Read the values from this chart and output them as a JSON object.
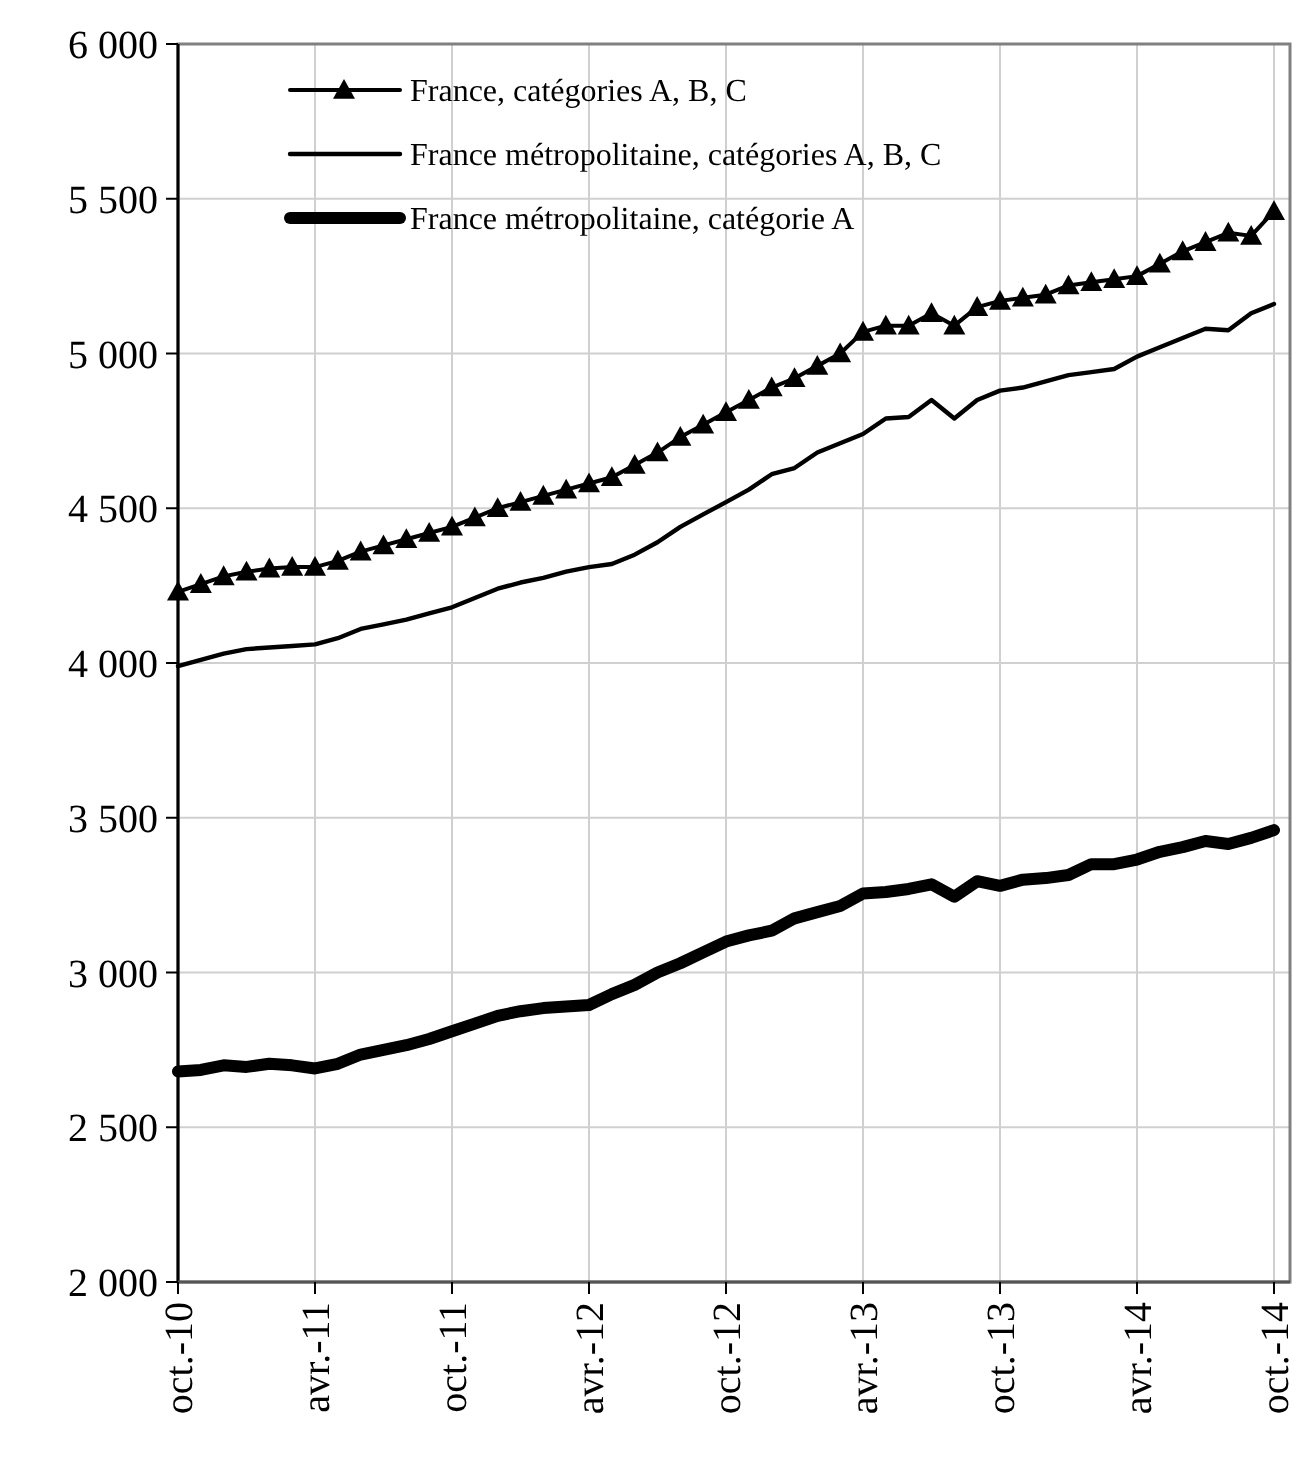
{
  "chart_data": {
    "type": "line",
    "categories": [
      "oct.-10",
      null,
      null,
      null,
      null,
      null,
      "avr.-11",
      null,
      null,
      null,
      null,
      null,
      "oct.-11",
      null,
      null,
      null,
      null,
      null,
      "avr.-12",
      null,
      null,
      null,
      null,
      null,
      "oct.-12",
      null,
      null,
      null,
      null,
      null,
      "avr.-13",
      null,
      null,
      null,
      null,
      null,
      "oct.-13",
      null,
      null,
      null,
      null,
      null,
      "avr.-14",
      null,
      null,
      null,
      null,
      null,
      "oct.-14"
    ],
    "series": [
      {
        "name": "France, catégories A, B, C",
        "color": "#000000",
        "marker": "triangle",
        "values": [
          4230,
          4255,
          4280,
          4295,
          4305,
          4310,
          4310,
          4330,
          4360,
          4380,
          4400,
          4420,
          4440,
          4470,
          4500,
          4520,
          4540,
          4560,
          4580,
          4600,
          4640,
          4680,
          4730,
          4770,
          4810,
          4850,
          4890,
          4920,
          4960,
          5000,
          5070,
          5090,
          5090,
          5130,
          5090,
          5150,
          5170,
          5180,
          5190,
          5220,
          5230,
          5240,
          5250,
          5290,
          5330,
          5360,
          5390,
          5380,
          5460
        ]
      },
      {
        "name": "France métropolitaine, catégories A, B, C",
        "color": "#000000",
        "marker": "none",
        "values": [
          3990,
          4010,
          4030,
          4045,
          4050,
          4055,
          4060,
          4080,
          4110,
          4125,
          4140,
          4160,
          4180,
          4210,
          4240,
          4260,
          4275,
          4295,
          4310,
          4320,
          4350,
          4390,
          4440,
          4480,
          4520,
          4560,
          4610,
          4630,
          4680,
          4710,
          4740,
          4790,
          4795,
          4850,
          4790,
          4850,
          4880,
          4890,
          4910,
          4930,
          4940,
          4950,
          4990,
          5020,
          5050,
          5080,
          5075,
          5130,
          5160
        ]
      },
      {
        "name": "France métropolitaine, catégorie A",
        "color": "#000000",
        "marker": "none",
        "values": [
          2680,
          2685,
          2700,
          2695,
          2705,
          2700,
          2690,
          2705,
          2735,
          2750,
          2765,
          2785,
          2810,
          2835,
          2860,
          2875,
          2885,
          2890,
          2895,
          2930,
          2960,
          3000,
          3030,
          3065,
          3100,
          3120,
          3135,
          3175,
          3195,
          3215,
          3255,
          3260,
          3270,
          3285,
          3245,
          3295,
          3280,
          3300,
          3305,
          3315,
          3350,
          3350,
          3365,
          3390,
          3405,
          3425,
          3415,
          3435,
          3460
        ]
      }
    ],
    "ylim": [
      2000,
      6000
    ],
    "yticks": [
      {
        "value": 2000,
        "label": "2 000"
      },
      {
        "value": 2500,
        "label": "2 500"
      },
      {
        "value": 3000,
        "label": "3 000"
      },
      {
        "value": 3500,
        "label": "3 500"
      },
      {
        "value": 4000,
        "label": "4 000"
      },
      {
        "value": 4500,
        "label": "4 500"
      },
      {
        "value": 5000,
        "label": "5 000"
      },
      {
        "value": 5500,
        "label": "5 500"
      },
      {
        "value": 6000,
        "label": "6 000"
      }
    ],
    "grid": true,
    "legend": "top left",
    "line_style": "solid"
  }
}
